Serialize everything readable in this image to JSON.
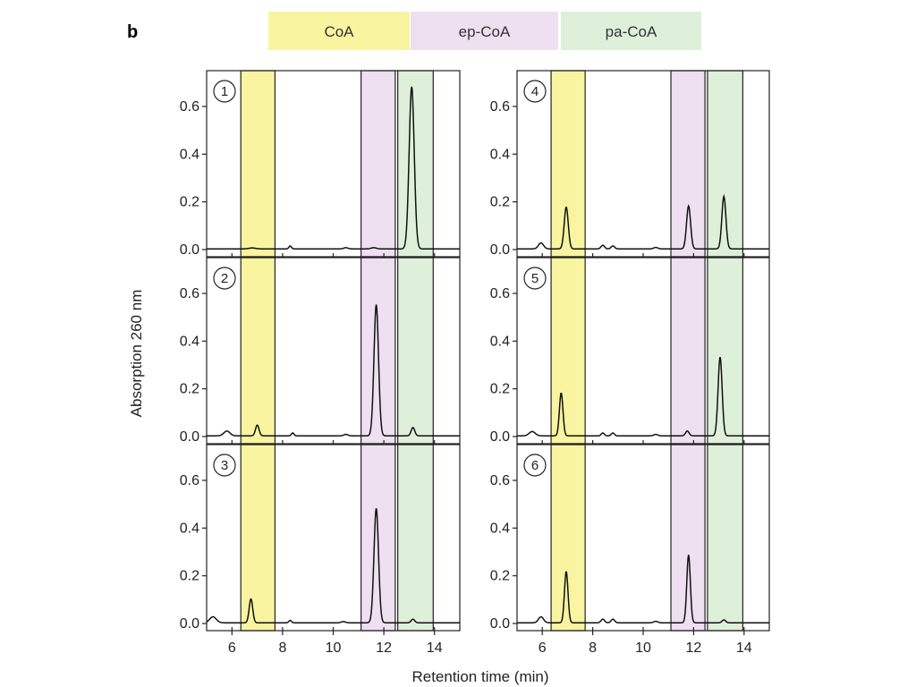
{
  "figure": {
    "panel_label": "b"
  },
  "chart_data": {
    "type": "line",
    "xlabel": "Retention time (min)",
    "ylabel": "Absorption 260 nm",
    "xlim": [
      5,
      15
    ],
    "ylim": [
      -0.03,
      0.75
    ],
    "x_ticks": [
      6,
      8,
      10,
      12,
      14
    ],
    "y_ticks": [
      0.0,
      0.2,
      0.4,
      0.6
    ],
    "y_tick_labels": [
      "0.0",
      "0.2",
      "0.4",
      "0.6"
    ],
    "x_tick_labels": [
      "6",
      "8",
      "10",
      "12",
      "14"
    ],
    "grid": false,
    "legend": {
      "placement": "top",
      "entries": [
        {
          "name": "CoA",
          "color": "#f8f4a0"
        },
        {
          "name": "ep-CoA",
          "color": "#eee0f0"
        },
        {
          "name": "pa-CoA",
          "color": "#def0da"
        }
      ]
    },
    "bands": [
      {
        "name": "CoA",
        "x": [
          6.35,
          7.7
        ],
        "color": "#f8f4a0"
      },
      {
        "name": "ep-CoA",
        "x": [
          11.1,
          12.45
        ],
        "color": "#eee0f0"
      },
      {
        "name": "pa-CoA",
        "x": [
          12.55,
          13.95
        ],
        "color": "#def0da"
      }
    ],
    "panels": [
      {
        "label": "1",
        "peaks": [
          {
            "x": 6.8,
            "y": 0.004,
            "w": 0.12
          },
          {
            "x": 8.3,
            "y": 0.012,
            "w": 0.05
          },
          {
            "x": 10.5,
            "y": 0.005,
            "w": 0.08
          },
          {
            "x": 11.6,
            "y": 0.005,
            "w": 0.1
          },
          {
            "x": 13.1,
            "y": 0.68,
            "w": 0.1
          }
        ]
      },
      {
        "label": "2",
        "peaks": [
          {
            "x": 5.8,
            "y": 0.02,
            "w": 0.12
          },
          {
            "x": 7.0,
            "y": 0.045,
            "w": 0.07
          },
          {
            "x": 8.4,
            "y": 0.012,
            "w": 0.05
          },
          {
            "x": 10.5,
            "y": 0.006,
            "w": 0.08
          },
          {
            "x": 11.7,
            "y": 0.55,
            "w": 0.09
          },
          {
            "x": 13.15,
            "y": 0.035,
            "w": 0.07
          }
        ]
      },
      {
        "label": "3",
        "peaks": [
          {
            "x": 5.25,
            "y": 0.025,
            "w": 0.13
          },
          {
            "x": 6.75,
            "y": 0.1,
            "w": 0.07
          },
          {
            "x": 8.3,
            "y": 0.01,
            "w": 0.05
          },
          {
            "x": 10.4,
            "y": 0.005,
            "w": 0.08
          },
          {
            "x": 11.7,
            "y": 0.48,
            "w": 0.09
          },
          {
            "x": 13.15,
            "y": 0.015,
            "w": 0.07
          }
        ]
      },
      {
        "label": "4",
        "peaks": [
          {
            "x": 5.95,
            "y": 0.025,
            "w": 0.1
          },
          {
            "x": 6.95,
            "y": 0.175,
            "w": 0.08
          },
          {
            "x": 8.4,
            "y": 0.015,
            "w": 0.07
          },
          {
            "x": 8.8,
            "y": 0.012,
            "w": 0.07
          },
          {
            "x": 10.5,
            "y": 0.006,
            "w": 0.08
          },
          {
            "x": 11.8,
            "y": 0.18,
            "w": 0.08
          },
          {
            "x": 13.2,
            "y": 0.22,
            "w": 0.08
          }
        ]
      },
      {
        "label": "5",
        "peaks": [
          {
            "x": 5.6,
            "y": 0.018,
            "w": 0.12
          },
          {
            "x": 6.75,
            "y": 0.18,
            "w": 0.07
          },
          {
            "x": 8.4,
            "y": 0.012,
            "w": 0.06
          },
          {
            "x": 8.8,
            "y": 0.012,
            "w": 0.06
          },
          {
            "x": 10.5,
            "y": 0.006,
            "w": 0.08
          },
          {
            "x": 11.75,
            "y": 0.02,
            "w": 0.07
          },
          {
            "x": 13.05,
            "y": 0.33,
            "w": 0.08
          }
        ]
      },
      {
        "label": "6",
        "peaks": [
          {
            "x": 5.95,
            "y": 0.025,
            "w": 0.1
          },
          {
            "x": 6.95,
            "y": 0.215,
            "w": 0.07
          },
          {
            "x": 8.4,
            "y": 0.015,
            "w": 0.07
          },
          {
            "x": 8.8,
            "y": 0.015,
            "w": 0.07
          },
          {
            "x": 10.5,
            "y": 0.006,
            "w": 0.08
          },
          {
            "x": 11.8,
            "y": 0.285,
            "w": 0.07
          },
          {
            "x": 13.2,
            "y": 0.012,
            "w": 0.07
          }
        ]
      }
    ]
  }
}
